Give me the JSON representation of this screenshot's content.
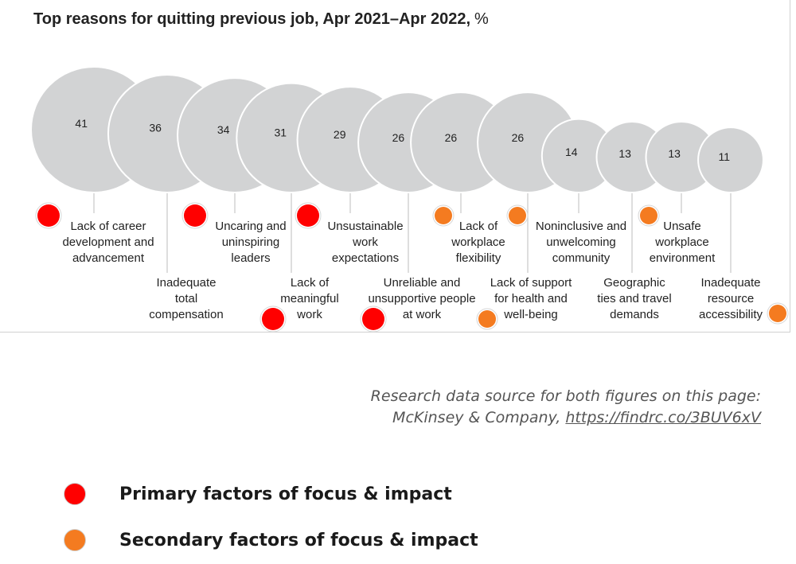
{
  "chart_data": {
    "type": "bubble",
    "title": "Top reasons for quitting previous job, Apr 2021–Apr 2022,",
    "title_unit": "%",
    "categories": [
      "Lack of career development and advancement",
      "Inadequate total compensation",
      "Uncaring and uninspiring leaders",
      "Lack of meaningful work",
      "Unsustainable work expectations",
      "Unreliable and unsupportive people at work",
      "Lack of workplace flexibility",
      "Lack of support for health and well-being",
      "Noninclusive and unwelcoming community",
      "Geographic ties and travel demands",
      "Unsafe workplace environment",
      "Inadequate resource accessibility"
    ],
    "values": [
      41,
      36,
      34,
      31,
      29,
      26,
      26,
      26,
      14,
      13,
      13,
      11
    ],
    "value_labels": [
      "41",
      "36",
      "34",
      "31",
      "29",
      "26",
      "26",
      "26",
      "14",
      "13",
      "13",
      "11"
    ],
    "label_lines": [
      [
        "Lack of career",
        "development and",
        "advancement"
      ],
      [
        "Inadequate",
        "total",
        "compensation"
      ],
      [
        "Uncaring and",
        "uninspiring",
        "leaders"
      ],
      [
        "Lack of",
        "meaningful",
        "work"
      ],
      [
        "Unsustainable",
        "work",
        "expectations"
      ],
      [
        "Unreliable and",
        "unsupportive people",
        "at work"
      ],
      [
        "Lack of",
        "workplace",
        "flexibility"
      ],
      [
        "Lack of support",
        "for health and",
        "well-being"
      ],
      [
        "Noninclusive and",
        "unwelcoming",
        "community"
      ],
      [
        "Geographic",
        "ties and travel",
        "demands"
      ],
      [
        "Unsafe",
        "workplace",
        "environment"
      ],
      [
        "Inadequate",
        "resource",
        "accessibility"
      ]
    ],
    "label_row": [
      "top",
      "bottom",
      "top",
      "bottom",
      "top",
      "bottom",
      "top",
      "bottom",
      "top",
      "bottom",
      "top",
      "bottom"
    ],
    "markers": [
      "primary",
      null,
      "primary",
      "primary",
      "primary",
      "primary",
      "secondary",
      "secondary",
      "secondary",
      null,
      "secondary",
      "secondary"
    ]
  },
  "colors": {
    "bubble": "#d2d3d4",
    "bubble_edge": "#ffffff",
    "primary": "#ff0000",
    "secondary": "#f47b20",
    "text": "#222222",
    "connector": "#c8c8c8"
  },
  "source": {
    "line1": "Research data source for both figures on this page:",
    "line2_prefix": "McKinsey & Company, ",
    "link": "https://findrc.co/3BUV6xV"
  },
  "legend": {
    "primary_label": "Primary factors of focus & impact",
    "secondary_label": "Secondary factors of focus & impact"
  }
}
